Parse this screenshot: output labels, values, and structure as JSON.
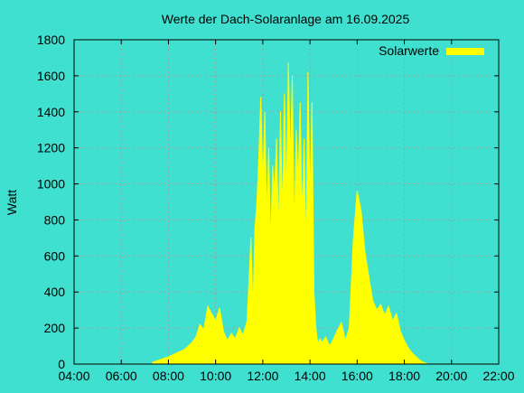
{
  "chart_data": {
    "type": "area",
    "title": "Werte der Dach-Solaranlage am 16.09.2025",
    "xlabel": "",
    "ylabel": "Watt",
    "x_tick_labels": [
      "04:00",
      "06:00",
      "08:00",
      "10:00",
      "12:00",
      "14:00",
      "16:00",
      "18:00",
      "20:00",
      "22:00"
    ],
    "y_tick_labels": [
      "0",
      "200",
      "400",
      "600",
      "800",
      "1000",
      "1200",
      "1400",
      "1600",
      "1800"
    ],
    "xlim_hours": [
      4,
      22
    ],
    "ylim": [
      0,
      1800
    ],
    "grid": true,
    "legend_position": "top-right",
    "colors": {
      "background": "#40e0d0",
      "series": "#ffff00",
      "grid": "#a0a0a0"
    },
    "series": [
      {
        "name": "Solarwerte",
        "x": [
          "07:20",
          "07:40",
          "08:00",
          "08:20",
          "08:40",
          "09:00",
          "09:10",
          "09:20",
          "09:30",
          "09:40",
          "09:50",
          "10:00",
          "10:10",
          "10:20",
          "10:30",
          "10:40",
          "10:50",
          "11:00",
          "11:10",
          "11:20",
          "11:30",
          "11:35",
          "11:40",
          "11:45",
          "11:50",
          "11:55",
          "12:00",
          "12:05",
          "12:10",
          "12:15",
          "12:20",
          "12:25",
          "12:30",
          "12:35",
          "12:40",
          "12:45",
          "12:50",
          "12:55",
          "13:00",
          "13:05",
          "13:10",
          "13:15",
          "13:20",
          "13:25",
          "13:30",
          "13:35",
          "13:40",
          "13:45",
          "13:50",
          "13:55",
          "14:00",
          "14:05",
          "14:10",
          "14:15",
          "14:20",
          "14:25",
          "14:30",
          "14:40",
          "14:50",
          "15:00",
          "15:10",
          "15:20",
          "15:30",
          "15:40",
          "15:50",
          "16:00",
          "16:10",
          "16:20",
          "16:30",
          "16:40",
          "16:50",
          "17:00",
          "17:10",
          "17:20",
          "17:30",
          "17:40",
          "17:50",
          "18:00",
          "18:10",
          "18:20",
          "18:30",
          "18:40",
          "18:50",
          "19:00"
        ],
        "values": [
          10,
          25,
          40,
          60,
          80,
          120,
          150,
          220,
          190,
          320,
          280,
          240,
          310,
          180,
          130,
          170,
          140,
          200,
          160,
          240,
          700,
          300,
          750,
          900,
          1150,
          1480,
          1000,
          1400,
          800,
          1200,
          650,
          1100,
          950,
          1250,
          700,
          1400,
          800,
          1500,
          900,
          1670,
          1100,
          1600,
          700,
          1300,
          1000,
          1450,
          800,
          1250,
          600,
          1620,
          900,
          1450,
          400,
          200,
          110,
          140,
          120,
          150,
          100,
          140,
          190,
          230,
          130,
          200,
          680,
          960,
          850,
          620,
          480,
          350,
          300,
          330,
          270,
          320,
          240,
          280,
          180,
          130,
          90,
          60,
          40,
          20,
          8,
          0
        ]
      }
    ]
  }
}
